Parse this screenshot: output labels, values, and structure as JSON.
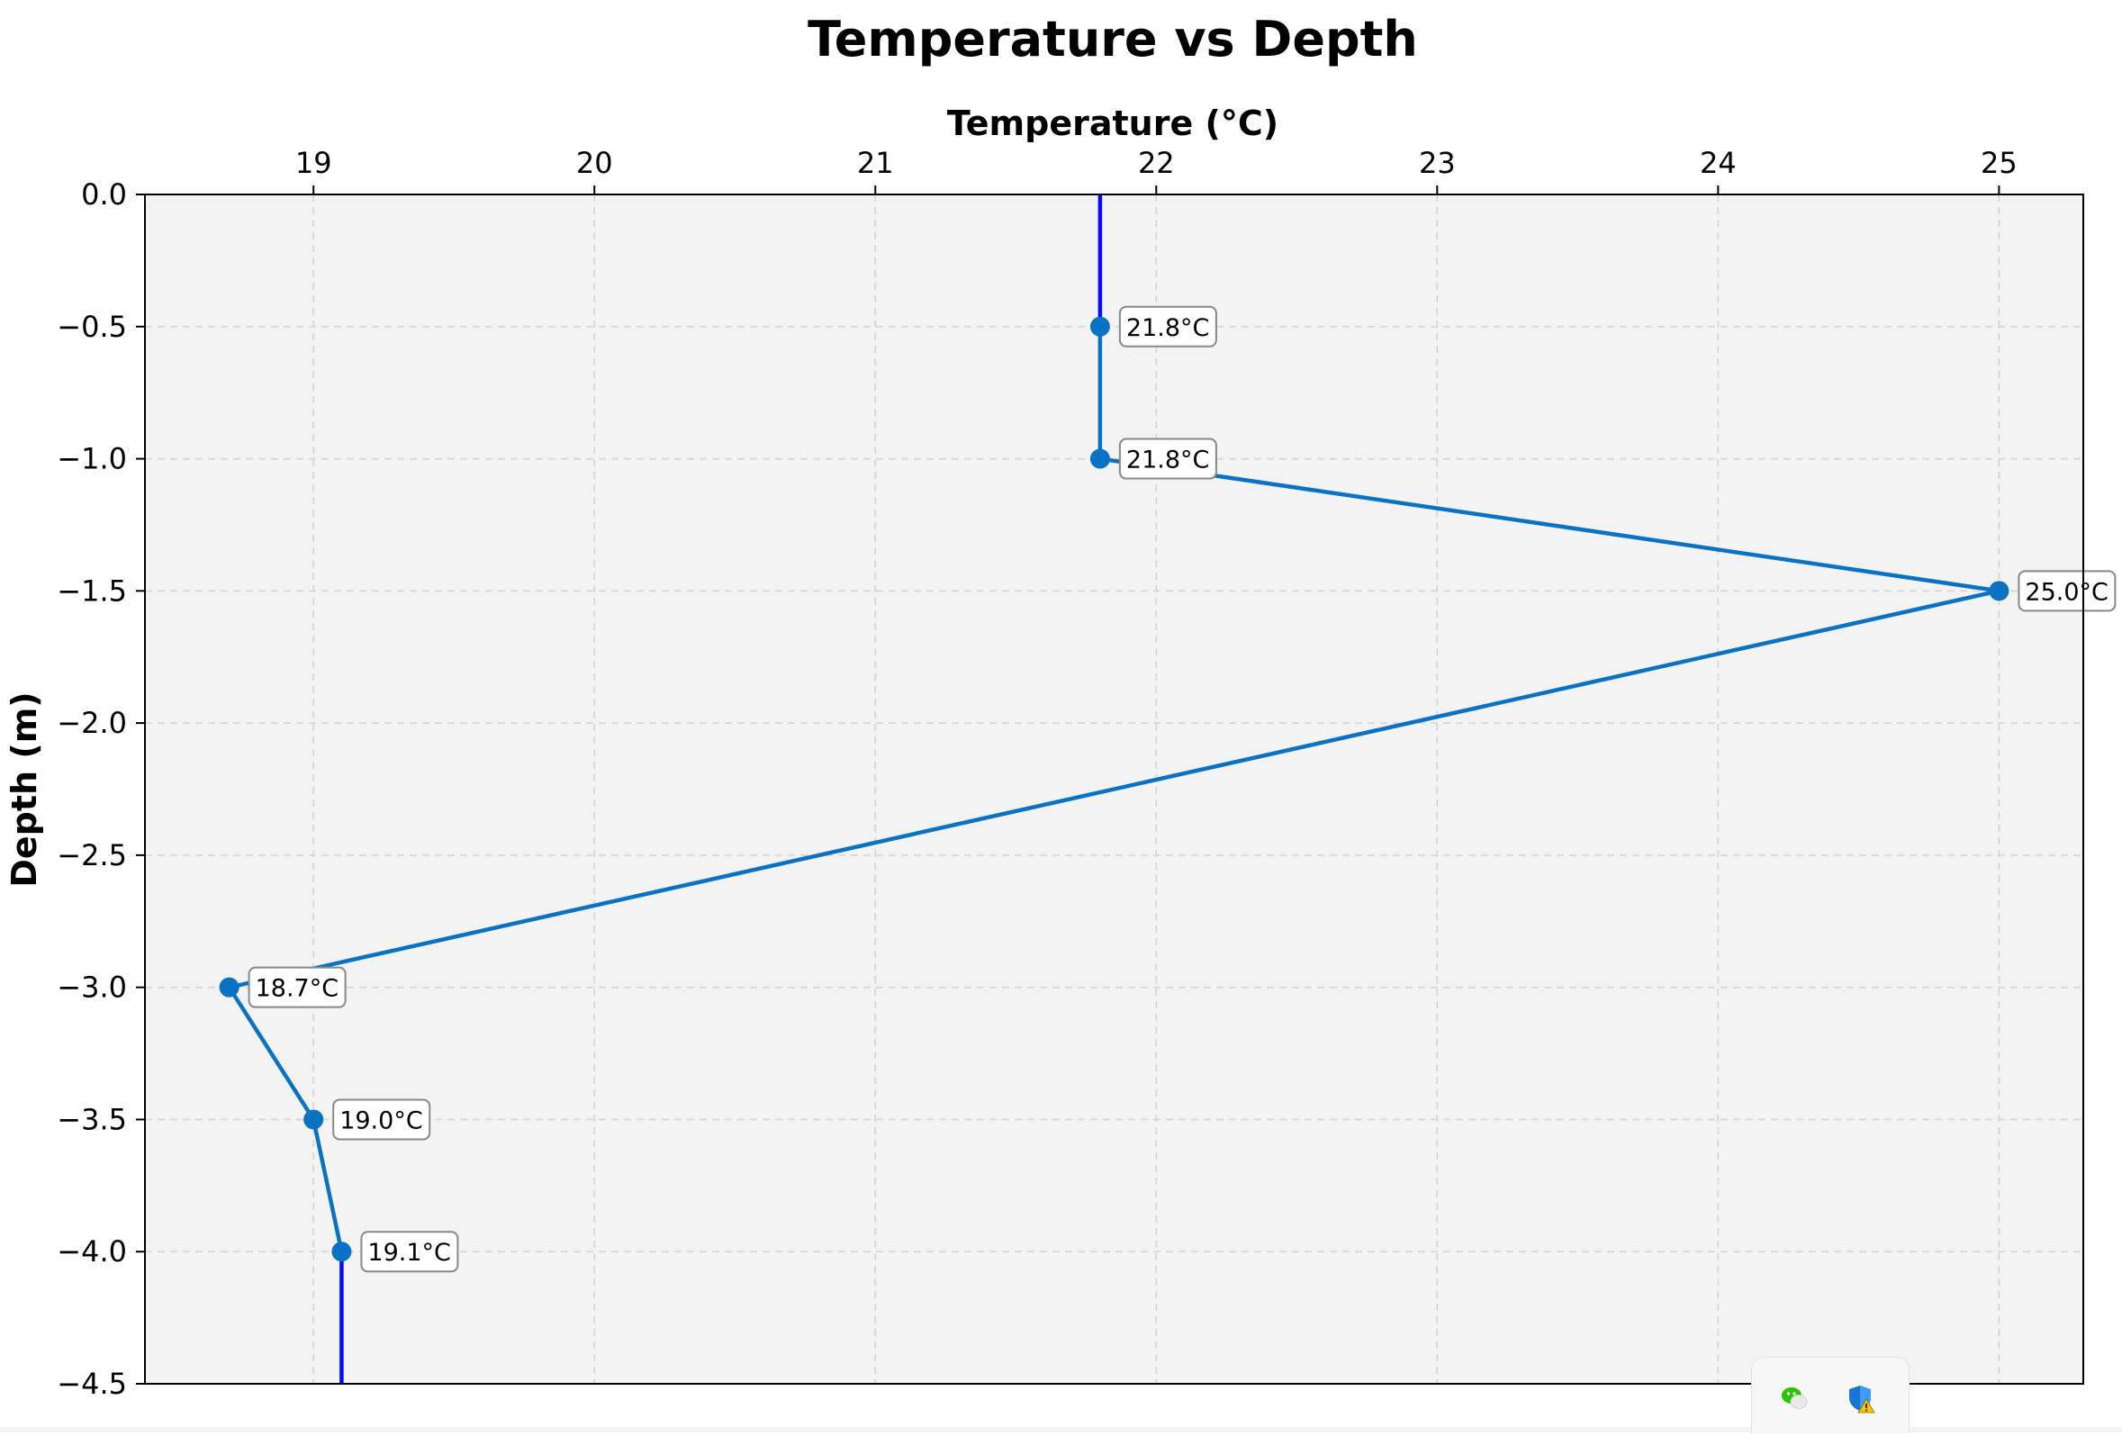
{
  "chart_data": {
    "type": "line",
    "title": "Temperature vs Depth",
    "xlabel": "Temperature (°C)",
    "ylabel": "Depth (m)",
    "x_axis_position": "top",
    "xlim": [
      18.4,
      25.3
    ],
    "ylim": [
      -4.5,
      0.0
    ],
    "xticks": [
      19,
      20,
      21,
      22,
      23,
      24,
      25
    ],
    "yticks": [
      0.0,
      -0.5,
      -1.0,
      -1.5,
      -2.0,
      -2.5,
      -3.0,
      -3.5,
      -4.0,
      -4.5
    ],
    "ytick_labels": [
      "0.0",
      "−0.5",
      "−1.0",
      "−1.5",
      "−2.0",
      "−2.5",
      "−3.0",
      "−3.5",
      "−4.0",
      "−4.5"
    ],
    "grid": true,
    "series": [
      {
        "temperature": [
          21.8,
          21.8,
          25.0,
          18.7,
          19.0,
          19.1
        ],
        "depth": [
          -0.5,
          -1.0,
          -1.5,
          -3.0,
          -3.5,
          -4.0
        ],
        "labels": [
          "21.8°C",
          "21.8°C",
          "25.0°C",
          "18.7°C",
          "19.0°C",
          "19.1°C"
        ],
        "color": "#0a72c2"
      }
    ],
    "extensions": [
      {
        "temperature": 21.8,
        "depth_from": 0.0,
        "depth_to": -0.5,
        "color": "#0a0aff"
      },
      {
        "temperature": 19.1,
        "depth_from": -4.0,
        "depth_to": -4.5,
        "color": "#0a0aff"
      }
    ],
    "colors": {
      "plot_background": "#f3f3f3",
      "grid": "#d4d4d4",
      "label_box_border": "#888888"
    }
  },
  "taskbar": {
    "icons": [
      "wechat-icon",
      "security-shield-warning-icon"
    ]
  }
}
